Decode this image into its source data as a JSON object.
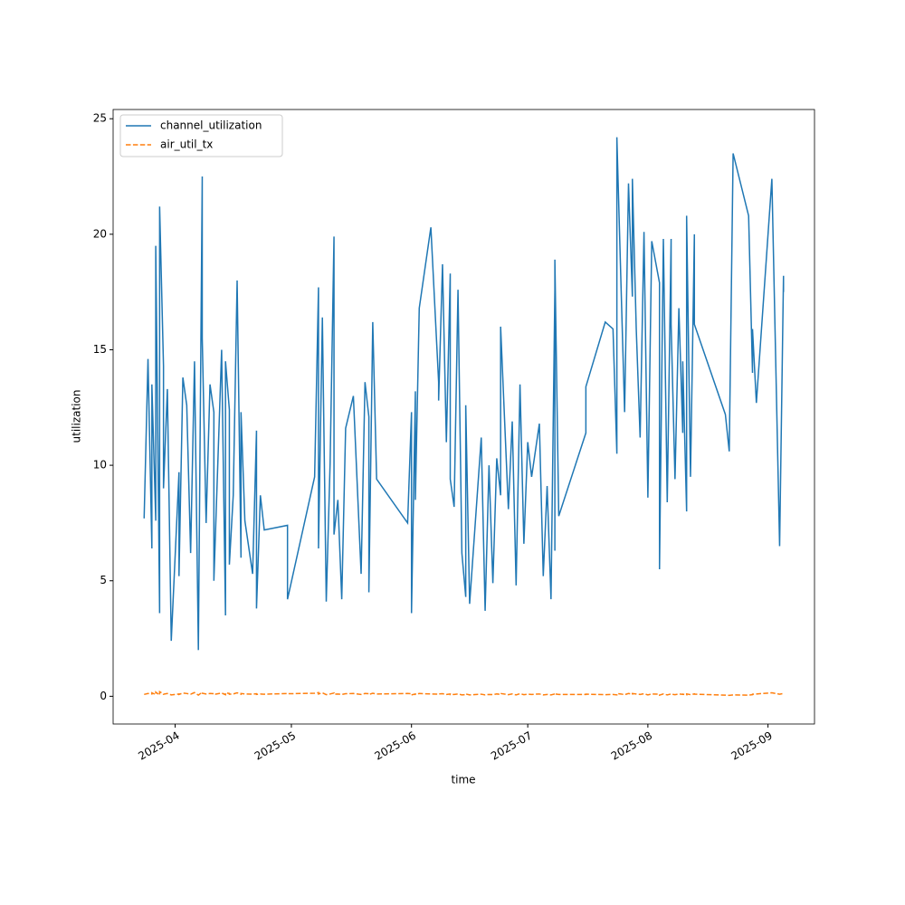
{
  "chart_data": {
    "type": "line",
    "x_label": "time",
    "y_label": "utilization",
    "x": [
      "2025-03-24",
      "2025-03-25",
      "2025-03-26",
      "2025-03-26",
      "2025-03-27",
      "2025-03-27",
      "2025-03-28",
      "2025-03-28",
      "2025-03-29",
      "2025-03-29",
      "2025-03-30",
      "2025-03-31",
      "2025-04-02",
      "2025-04-02",
      "2025-04-03",
      "2025-04-04",
      "2025-04-05",
      "2025-04-06",
      "2025-04-07",
      "2025-04-08",
      "2025-04-08",
      "2025-04-09",
      "2025-04-10",
      "2025-04-11",
      "2025-04-11",
      "2025-04-13",
      "2025-04-14",
      "2025-04-14",
      "2025-04-15",
      "2025-04-15",
      "2025-04-16",
      "2025-04-17",
      "2025-04-18",
      "2025-04-18",
      "2025-04-19",
      "2025-04-21",
      "2025-04-22",
      "2025-04-22",
      "2025-04-23",
      "2025-04-24",
      "2025-04-30",
      "2025-04-30",
      "2025-05-07",
      "2025-05-08",
      "2025-05-08",
      "2025-05-09",
      "2025-05-10",
      "2025-05-11",
      "2025-05-12",
      "2025-05-12",
      "2025-05-13",
      "2025-05-14",
      "2025-05-15",
      "2025-05-17",
      "2025-05-19",
      "2025-05-20",
      "2025-05-21",
      "2025-05-21",
      "2025-05-22",
      "2025-05-23",
      "2025-05-31",
      "2025-06-01",
      "2025-06-01",
      "2025-06-02",
      "2025-06-02",
      "2025-06-03",
      "2025-06-06",
      "2025-06-08",
      "2025-06-08",
      "2025-06-09",
      "2025-06-10",
      "2025-06-11",
      "2025-06-11",
      "2025-06-12",
      "2025-06-13",
      "2025-06-14",
      "2025-06-15",
      "2025-06-15",
      "2025-06-16",
      "2025-06-19",
      "2025-06-20",
      "2025-06-21",
      "2025-06-22",
      "2025-06-23",
      "2025-06-24",
      "2025-06-24",
      "2025-06-26",
      "2025-06-27",
      "2025-06-28",
      "2025-06-29",
      "2025-06-30",
      "2025-07-01",
      "2025-07-02",
      "2025-07-04",
      "2025-07-05",
      "2025-07-06",
      "2025-07-07",
      "2025-07-08",
      "2025-07-08",
      "2025-07-08",
      "2025-07-09",
      "2025-07-16",
      "2025-07-16",
      "2025-07-21",
      "2025-07-23",
      "2025-07-24",
      "2025-07-24",
      "2025-07-25",
      "2025-07-26",
      "2025-07-27",
      "2025-07-28",
      "2025-07-28",
      "2025-07-29",
      "2025-07-30",
      "2025-07-31",
      "2025-08-01",
      "2025-08-02",
      "2025-08-04",
      "2025-08-04",
      "2025-08-05",
      "2025-08-06",
      "2025-08-07",
      "2025-08-07",
      "2025-08-08",
      "2025-08-09",
      "2025-08-10",
      "2025-08-10",
      "2025-08-11",
      "2025-08-11",
      "2025-08-12",
      "2025-08-13",
      "2025-08-13",
      "2025-08-21",
      "2025-08-22",
      "2025-08-23",
      "2025-08-27",
      "2025-08-28",
      "2025-08-28",
      "2025-08-29",
      "2025-09-02",
      "2025-09-04",
      "2025-09-05",
      "2025-09-05"
    ],
    "series": [
      {
        "name": "channel_utilization",
        "color": "#1f77b4",
        "dash": "solid",
        "values": [
          7.7,
          14.6,
          6.4,
          13.5,
          7.6,
          19.5,
          3.6,
          21.2,
          14.3,
          9.0,
          13.3,
          2.4,
          9.7,
          5.2,
          13.8,
          12.6,
          6.2,
          14.5,
          2.0,
          22.5,
          15.5,
          7.5,
          13.5,
          12.3,
          5.0,
          15.0,
          3.5,
          14.5,
          12.4,
          5.7,
          8.7,
          18.0,
          6.0,
          12.3,
          7.6,
          5.3,
          11.5,
          3.8,
          8.7,
          7.2,
          7.4,
          4.2,
          9.5,
          17.7,
          6.4,
          16.4,
          4.1,
          10.1,
          19.9,
          7.0,
          8.5,
          4.2,
          11.6,
          13.0,
          5.3,
          13.6,
          12.1,
          4.5,
          16.2,
          9.4,
          7.5,
          12.3,
          3.6,
          13.2,
          8.5,
          16.8,
          20.3,
          13.6,
          12.8,
          18.7,
          11.0,
          18.3,
          9.4,
          8.2,
          17.6,
          6.2,
          4.3,
          12.6,
          4.0,
          11.2,
          3.7,
          10.0,
          4.9,
          10.3,
          8.7,
          16.0,
          8.1,
          11.9,
          4.8,
          13.5,
          6.6,
          11.0,
          9.5,
          11.8,
          5.2,
          9.1,
          4.2,
          17.6,
          6.3,
          18.9,
          7.8,
          11.4,
          13.4,
          16.2,
          15.9,
          10.5,
          24.2,
          18.2,
          12.3,
          22.2,
          17.3,
          22.4,
          15.9,
          11.2,
          20.1,
          8.6,
          19.7,
          17.9,
          5.5,
          19.8,
          8.4,
          19.8,
          16.1,
          9.4,
          16.8,
          11.4,
          14.5,
          8.0,
          20.8,
          9.5,
          20.0,
          16.1,
          12.2,
          10.6,
          23.5,
          20.8,
          14.0,
          15.9,
          12.7,
          22.4,
          6.5,
          18.2,
          17.5
        ]
      },
      {
        "name": "air_util_tx",
        "color": "#ff7f0e",
        "dash": "dashed",
        "values": [
          0.08,
          0.12,
          0.1,
          0.15,
          0.07,
          0.18,
          0.05,
          0.2,
          0.1,
          0.09,
          0.12,
          0.06,
          0.1,
          0.08,
          0.14,
          0.12,
          0.09,
          0.16,
          0.05,
          0.18,
          0.13,
          0.1,
          0.12,
          0.11,
          0.08,
          0.14,
          0.07,
          0.15,
          0.12,
          0.09,
          0.1,
          0.15,
          0.09,
          0.12,
          0.1,
          0.09,
          0.11,
          0.08,
          0.1,
          0.09,
          0.12,
          0.11,
          0.13,
          0.16,
          0.1,
          0.15,
          0.07,
          0.1,
          0.14,
          0.09,
          0.1,
          0.08,
          0.11,
          0.12,
          0.08,
          0.12,
          0.11,
          0.08,
          0.13,
          0.1,
          0.12,
          0.11,
          0.06,
          0.1,
          0.08,
          0.12,
          0.1,
          0.09,
          0.1,
          0.11,
          0.08,
          0.1,
          0.07,
          0.08,
          0.1,
          0.06,
          0.07,
          0.1,
          0.06,
          0.09,
          0.06,
          0.08,
          0.07,
          0.1,
          0.08,
          0.12,
          0.07,
          0.1,
          0.06,
          0.11,
          0.07,
          0.09,
          0.08,
          0.1,
          0.06,
          0.08,
          0.06,
          0.1,
          0.07,
          0.1,
          0.08,
          0.08,
          0.09,
          0.07,
          0.08,
          0.06,
          0.12,
          0.1,
          0.07,
          0.12,
          0.09,
          0.12,
          0.1,
          0.08,
          0.11,
          0.06,
          0.1,
          0.09,
          0.05,
          0.1,
          0.06,
          0.1,
          0.09,
          0.07,
          0.1,
          0.08,
          0.09,
          0.06,
          0.1,
          0.07,
          0.1,
          0.09,
          0.05,
          0.04,
          0.06,
          0.05,
          0.07,
          0.09,
          0.1,
          0.15,
          0.09,
          0.12,
          0.1
        ]
      }
    ],
    "xlim": [
      "2025-03-16",
      "2025-09-13"
    ],
    "xticks": [
      {
        "value": "2025-04-01",
        "label": "2025-04"
      },
      {
        "value": "2025-05-01",
        "label": "2025-05"
      },
      {
        "value": "2025-06-01",
        "label": "2025-06"
      },
      {
        "value": "2025-07-01",
        "label": "2025-07"
      },
      {
        "value": "2025-08-01",
        "label": "2025-08"
      },
      {
        "value": "2025-09-01",
        "label": "2025-09"
      }
    ],
    "ylim": [
      -1.2,
      25.4
    ],
    "yticks": [
      0,
      5,
      10,
      15,
      20,
      25
    ],
    "grid": false,
    "legend": "upper-left"
  }
}
